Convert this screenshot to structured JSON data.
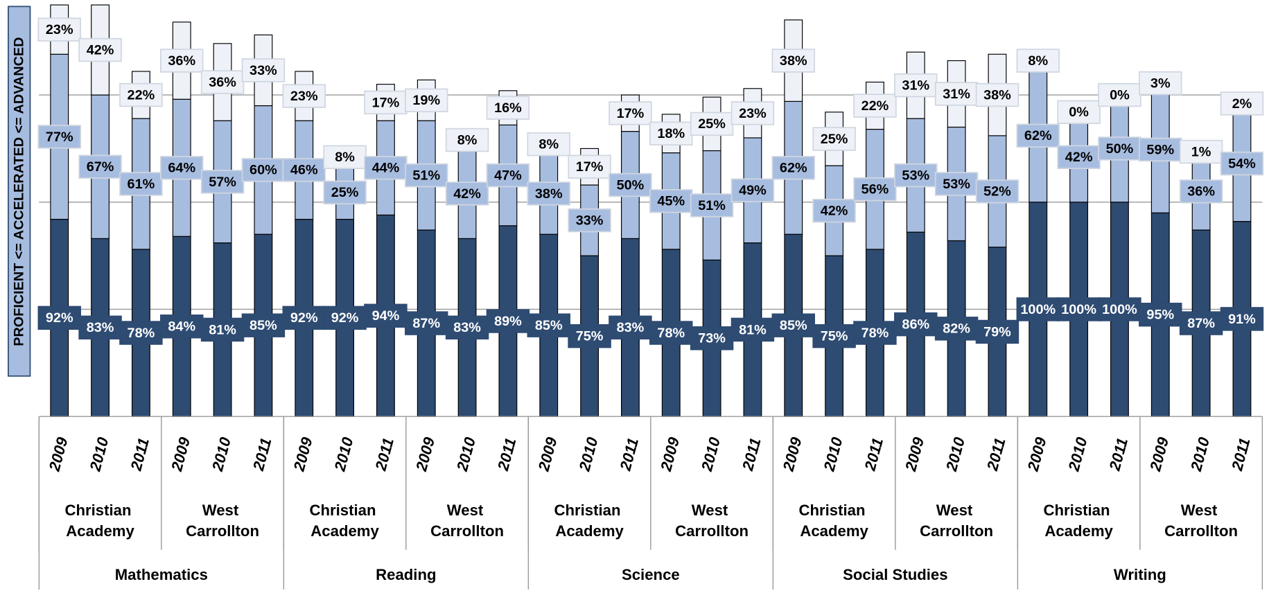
{
  "chart_data": {
    "type": "stacked_bar",
    "y_label": "PROFICIENT <= ACCELERATED <= ADVANCED",
    "categories": [
      "2009",
      "2010",
      "2011",
      "2009",
      "2010",
      "2011",
      "2009",
      "2010",
      "2011",
      "2009",
      "2010",
      "2011",
      "2009",
      "2010",
      "2011",
      "2009",
      "2010",
      "2011",
      "2009",
      "2010",
      "2011",
      "2009",
      "2010",
      "2011",
      "2009",
      "2010",
      "2011",
      "2009",
      "2010",
      "2011"
    ],
    "schools": [
      "Christian Academy",
      "West Carrollton",
      "Christian Academy",
      "West Carrollton",
      "Christian Academy",
      "West Carrollton",
      "Christian Academy",
      "West Carrollton",
      "Christian Academy",
      "West Carrollton"
    ],
    "subjects": [
      "Mathematics",
      "Reading",
      "Science",
      "Social Studies",
      "Writing"
    ],
    "series": [
      {
        "color": "#2e4b72",
        "label_color": "#ffffff",
        "values": [
          92,
          83,
          78,
          84,
          81,
          85,
          92,
          92,
          94,
          87,
          83,
          89,
          85,
          75,
          83,
          78,
          73,
          81,
          85,
          75,
          78,
          86,
          82,
          79,
          100,
          100,
          100,
          95,
          87,
          91
        ],
        "value_labels": [
          "92%",
          "83%",
          "78%",
          "84%",
          "81%",
          "85%",
          "92%",
          "92%",
          "94%",
          "87%",
          "83%",
          "89%",
          "85%",
          "75%",
          "83%",
          "78%",
          "73%",
          "81%",
          "85%",
          "75%",
          "78%",
          "86%",
          "82%",
          "79%",
          "100%",
          "100%",
          "100%",
          "95%",
          "87%",
          "91%"
        ]
      },
      {
        "color": "#a7bde0",
        "label_color": "#000000",
        "values": [
          77,
          67,
          61,
          64,
          57,
          60,
          46,
          25,
          44,
          51,
          42,
          47,
          38,
          33,
          50,
          45,
          51,
          49,
          62,
          42,
          56,
          53,
          53,
          52,
          62,
          42,
          50,
          59,
          36,
          54
        ],
        "value_labels": [
          "77%",
          "67%",
          "61%",
          "64%",
          "57%",
          "60%",
          "46%",
          "25%",
          "44%",
          "51%",
          "42%",
          "47%",
          "38%",
          "33%",
          "50%",
          "45%",
          "51%",
          "49%",
          "62%",
          "42%",
          "56%",
          "53%",
          "53%",
          "52%",
          "62%",
          "42%",
          "50%",
          "59%",
          "36%",
          "54%"
        ]
      },
      {
        "color": "#eef2f8",
        "label_color": "#000000",
        "values": [
          23,
          42,
          22,
          36,
          36,
          33,
          23,
          8,
          17,
          19,
          8,
          16,
          8,
          17,
          17,
          18,
          25,
          23,
          38,
          25,
          22,
          31,
          31,
          38,
          8,
          0,
          0,
          3,
          1,
          2
        ],
        "value_labels": [
          "23%",
          "42%",
          "22%",
          "36%",
          "36%",
          "33%",
          "23%",
          "8%",
          "17%",
          "19%",
          "8%",
          "16%",
          "8%",
          "17%",
          "17%",
          "18%",
          "25%",
          "23%",
          "38%",
          "25%",
          "22%",
          "31%",
          "31%",
          "38%",
          "8%",
          "0%",
          "0%",
          "3%",
          "1%",
          "2%"
        ]
      }
    ],
    "ylim": [
      0,
      194.3
    ],
    "yticks": [
      50,
      100,
      150
    ],
    "grid": true
  }
}
